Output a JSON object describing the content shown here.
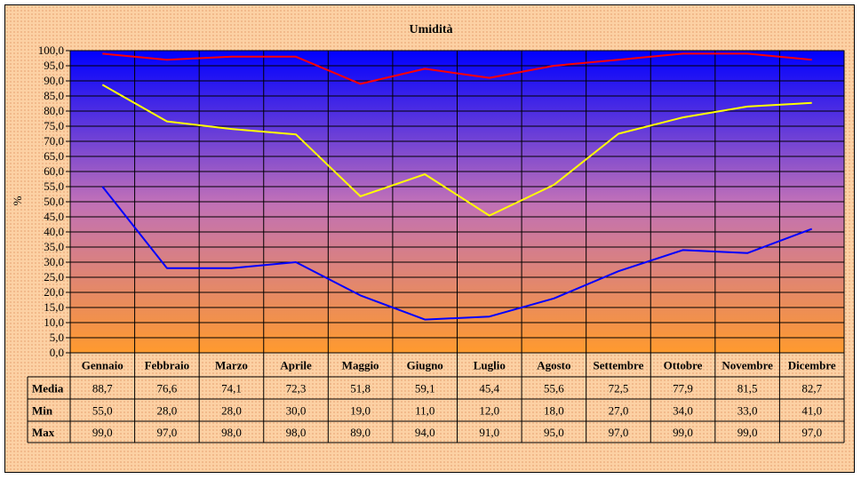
{
  "chart_data": {
    "type": "line",
    "title": "Umidità",
    "xlabel": "",
    "ylabel": "%",
    "ylim": [
      0,
      100
    ],
    "ytick_step": 5,
    "ytick_labels": [
      "0,0",
      "5,0",
      "10,0",
      "15,0",
      "20,0",
      "25,0",
      "30,0",
      "35,0",
      "40,0",
      "45,0",
      "50,0",
      "55,0",
      "60,0",
      "65,0",
      "70,0",
      "75,0",
      "80,0",
      "85,0",
      "90,0",
      "95,0",
      "100,0"
    ],
    "grid": true,
    "legend": "data table below chart",
    "categories": [
      "Gennaio",
      "Febbraio",
      "Marzo",
      "Aprile",
      "Maggio",
      "Giugno",
      "Luglio",
      "Agosto",
      "Settembre",
      "Ottobre",
      "Novembre",
      "Dicembre"
    ],
    "series": [
      {
        "name": "Media",
        "color": "#ffff00",
        "values": [
          88.7,
          76.6,
          74.1,
          72.3,
          51.8,
          59.1,
          45.4,
          55.6,
          72.5,
          77.9,
          81.5,
          82.7
        ],
        "labels": [
          "88,7",
          "76,6",
          "74,1",
          "72,3",
          "51,8",
          "59,1",
          "45,4",
          "55,6",
          "72,5",
          "77,9",
          "81,5",
          "82,7"
        ]
      },
      {
        "name": "Min",
        "color": "#0000ff",
        "values": [
          55.0,
          28.0,
          28.0,
          30.0,
          19.0,
          11.0,
          12.0,
          18.0,
          27.0,
          34.0,
          33.0,
          41.0
        ],
        "labels": [
          "55,0",
          "28,0",
          "28,0",
          "30,0",
          "19,0",
          "11,0",
          "12,0",
          "18,0",
          "27,0",
          "34,0",
          "33,0",
          "41,0"
        ]
      },
      {
        "name": "Max",
        "color": "#ff0000",
        "values": [
          99.0,
          97.0,
          98.0,
          98.0,
          89.0,
          94.0,
          91.0,
          95.0,
          97.0,
          99.0,
          99.0,
          97.0
        ],
        "labels": [
          "99,0",
          "97,0",
          "98,0",
          "98,0",
          "89,0",
          "94,0",
          "91,0",
          "95,0",
          "97,0",
          "99,0",
          "99,0",
          "97,0"
        ]
      }
    ],
    "background_gradient": [
      "#0000ff",
      "#ff9a2e"
    ]
  }
}
